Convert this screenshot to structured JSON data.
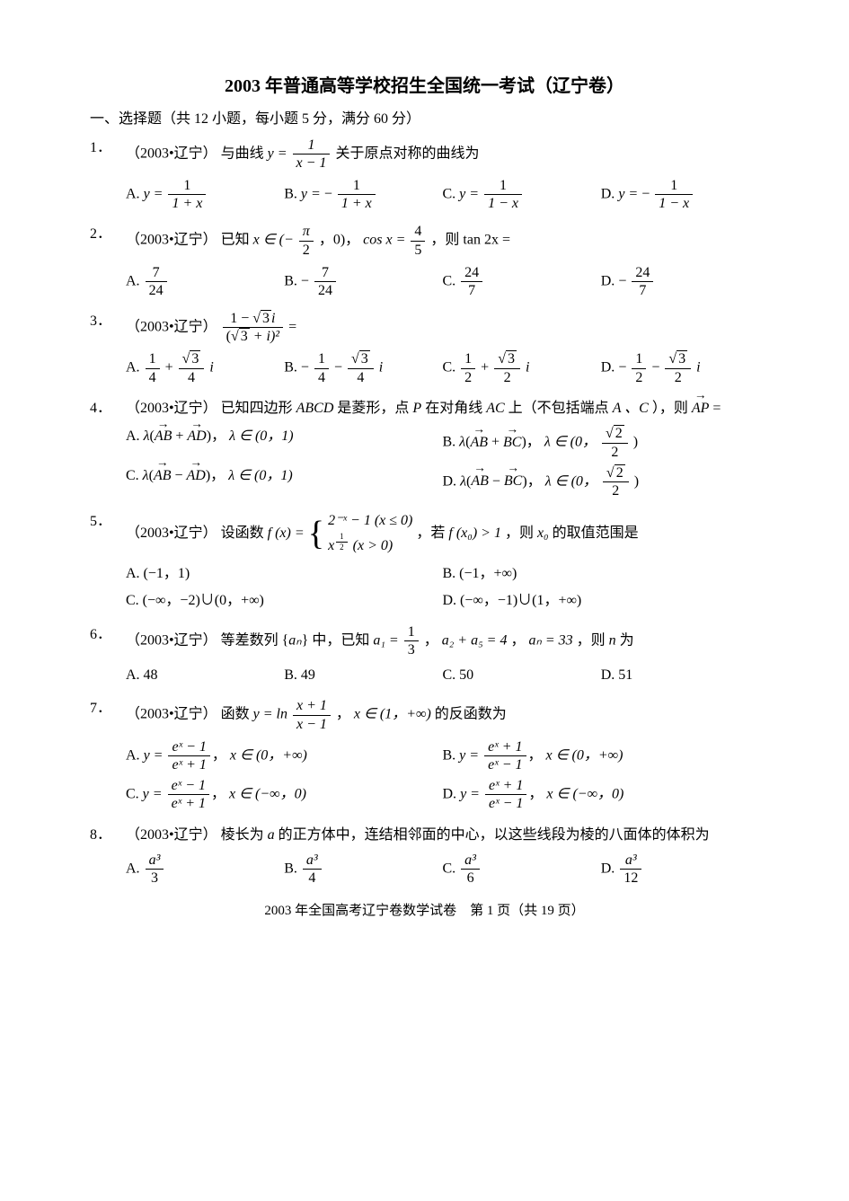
{
  "title": "2003 年普通高等学校招生全国统一考试（辽宁卷）",
  "section_header": "一、选择题（共 12 小题，每小题 5 分，满分 60 分）",
  "source_tag": "（2003•辽宁）",
  "footer": {
    "text_prefix": "2003 年全国高考辽宁卷数学试卷　第 ",
    "page_current": "1",
    "text_mid": " 页（共 ",
    "page_total": "19",
    "text_suffix": " 页）"
  },
  "questions": {
    "q1": {
      "num": "1．",
      "stem_tail": "关于原点对称的曲线为",
      "opts": {
        "A": "A.",
        "B": "B.",
        "C": "C.",
        "D": "D."
      }
    },
    "q2": {
      "num": "2．",
      "opts": {
        "A": "A.",
        "B": "B.",
        "C": "C.",
        "D": "D."
      }
    },
    "q3": {
      "num": "3．",
      "opts": {
        "A": "A.",
        "B": "B.",
        "C": "C.",
        "D": "D."
      }
    },
    "q4": {
      "num": "4．",
      "stem_a": "已知四边形 ",
      "stem_b": " 是菱形，点 ",
      "stem_c": " 在对角线 ",
      "stem_d": " 上（不包括端点 ",
      "stem_e": "），则 ",
      "ABCD": "ABCD",
      "P": "P",
      "AC": "AC",
      "A_C": "A 、C",
      "opts": {
        "A": "A.",
        "B": "B.",
        "C": "C.",
        "D": "D."
      }
    },
    "q5": {
      "num": "5．",
      "stem_a": "设函数 ",
      "stem_b": "，若 ",
      "stem_c": "，则 ",
      "stem_d": " 的取值范围是",
      "opts": {
        "A": "A. (−1，1)",
        "B": "B. (−1，+∞)",
        "C": "C. (−∞，−2)∪(0，+∞)",
        "D": "D. (−∞，−1)∪(1，+∞)"
      }
    },
    "q6": {
      "num": "6．",
      "stem_a": "等差数列 {",
      "stem_b": "} 中，已知 ",
      "stem_c": "，",
      "stem_d": "，",
      "stem_e": "，则 ",
      "stem_f": " 为",
      "opts": {
        "A": "A. 48",
        "B": "B. 49",
        "C": "C. 50",
        "D": "D. 51"
      }
    },
    "q7": {
      "num": "7．",
      "stem_a": "函数 ",
      "stem_b": "， ",
      "stem_c": " 的反函数为",
      "opts": {
        "A": "A.",
        "B": "B.",
        "C": "C.",
        "D": "D."
      }
    },
    "q8": {
      "num": "8．",
      "stem_a": "棱长为 ",
      "stem_b": " 的正方体中，连结相邻面的中心，以这些线段为棱的八面体的体积为",
      "opts": {
        "A": "A.",
        "B": "B.",
        "C": "C.",
        "D": "D."
      }
    }
  },
  "math": {
    "y_eq": "y =",
    "x_minus_1": "x − 1",
    "one": "1",
    "one_plus_x": "1 + x",
    "one_minus_x": "1 − x",
    "neg": "−",
    "x_in": "x ∈ (−",
    "pi": "π",
    "two": "2",
    "comma_zero": "，0)，",
    "cosx_eq": "cos x =",
    "four": "4",
    "five": "5",
    "then_tan2x": "，则 tan 2x =",
    "seven": "7",
    "twentyfour": "24",
    "sqrt3": "3",
    "i": "i",
    "sqrt3_plus_i_sq": "+ i)²",
    "eq": "=",
    "quarter": "4",
    "half": "2",
    "sqrt2": "2",
    "lambda": "λ",
    "AB": "AB",
    "AD": "AD",
    "BC": "BC",
    "lambda_in_01": "λ ∈ (0，1)",
    "lambda_in_0sqrt22": "λ ∈ (0，",
    "close_paren": ")",
    "fx_eq": "f (x) =",
    "case1": "2⁻ˣ − 1 (x ≤ 0)",
    "case2_a": "x",
    "case2_exp_num": "1",
    "case2_exp_den": "2",
    "case2_b": "(x > 0)",
    "fx0_gt1": "f (x₀) > 1",
    "x0": "x₀",
    "an": "aₙ",
    "a1_eq": "a₁ =",
    "one_third_num": "1",
    "one_third_den": "3",
    "a2_plus_a5_eq4": "a₂ + a₅ = 4",
    "an_eq33": "aₙ = 33",
    "n": "n",
    "y_eq_ln": "y = ln",
    "x_plus_1": "x + 1",
    "x_in_1_inf": "x ∈ (1，+∞)",
    "ex_minus_1": "eˣ − 1",
    "ex_plus_1": "eˣ + 1",
    "x_in_0_inf": "x ∈ (0，+∞)",
    "x_in_neginf_0": "x ∈ (−∞，0)",
    "a": "a",
    "a_cubed": "a³",
    "three": "3",
    "six": "6",
    "twelve": "12",
    "known": "已知 ",
    "with_curve": "与曲线 "
  }
}
